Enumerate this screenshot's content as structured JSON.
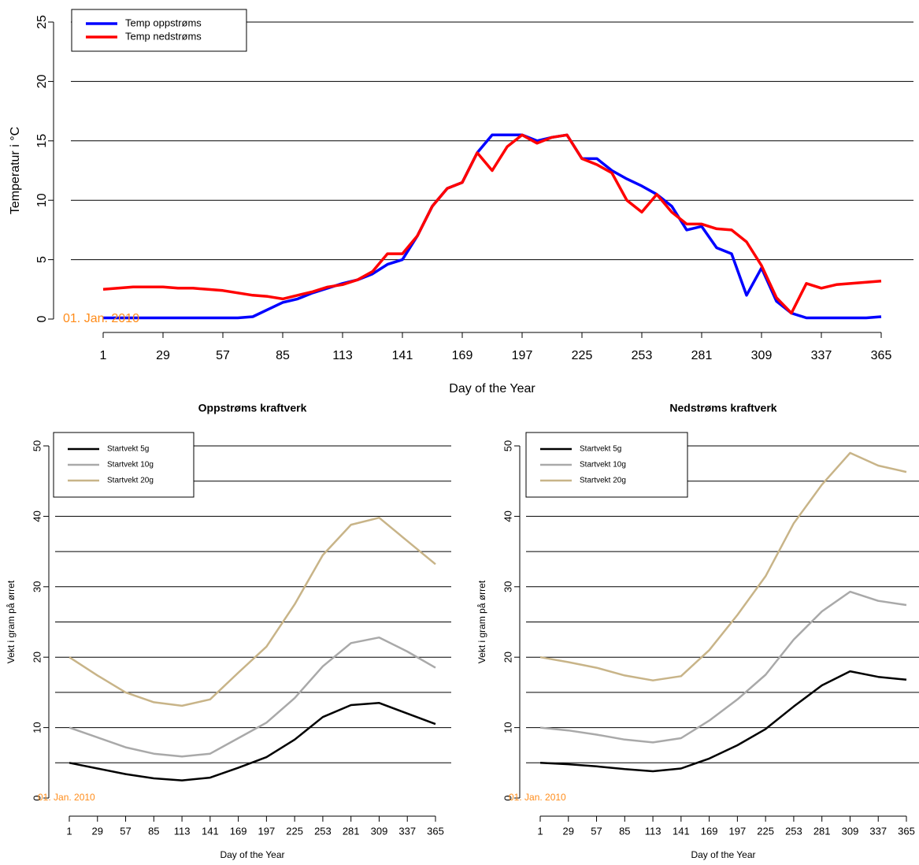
{
  "chart_data": [
    {
      "type": "line",
      "xlabel": "Day of the Year",
      "ylabel": "Temperatur i °C",
      "annotation": "01. Jan. 2010",
      "x": [
        1,
        8,
        15,
        22,
        29,
        36,
        43,
        50,
        57,
        64,
        71,
        78,
        85,
        92,
        99,
        106,
        113,
        120,
        127,
        134,
        141,
        148,
        155,
        162,
        169,
        176,
        183,
        190,
        197,
        204,
        211,
        218,
        225,
        232,
        239,
        246,
        253,
        260,
        267,
        274,
        281,
        288,
        295,
        302,
        309,
        316,
        323,
        330,
        337,
        344,
        351,
        358,
        365
      ],
      "series": [
        {
          "name": "Temp oppstrøms",
          "color": "#0000ff",
          "values": [
            0.1,
            0.1,
            0.1,
            0.1,
            0.1,
            0.1,
            0.1,
            0.1,
            0.1,
            0.1,
            0.2,
            0.8,
            1.4,
            1.7,
            2.2,
            2.6,
            3.0,
            3.3,
            3.8,
            4.6,
            5.0,
            7.0,
            9.5,
            11.0,
            11.5,
            14.0,
            15.5,
            15.5,
            15.5,
            15.0,
            15.3,
            15.5,
            13.5,
            13.5,
            12.5,
            11.8,
            11.2,
            10.5,
            9.5,
            7.5,
            7.8,
            6.0,
            5.5,
            2.0,
            4.3,
            1.5,
            0.5,
            0.1,
            0.1,
            0.1,
            0.1,
            0.1,
            0.2
          ]
        },
        {
          "name": "Temp nedstrøms",
          "color": "#ff0000",
          "values": [
            2.5,
            2.6,
            2.7,
            2.7,
            2.7,
            2.6,
            2.6,
            2.5,
            2.4,
            2.2,
            2.0,
            1.9,
            1.7,
            2.0,
            2.3,
            2.7,
            2.9,
            3.3,
            4.0,
            5.5,
            5.5,
            7.0,
            9.5,
            11.0,
            11.5,
            14.0,
            12.5,
            14.5,
            15.5,
            14.8,
            15.3,
            15.5,
            13.5,
            13.0,
            12.3,
            10.0,
            9.0,
            10.5,
            9.0,
            8.0,
            8.0,
            7.6,
            7.5,
            6.5,
            4.5,
            1.8,
            0.5,
            3.0,
            2.6,
            2.9,
            3.0,
            3.1,
            3.2
          ]
        }
      ],
      "xlim": [
        1,
        365
      ],
      "xticks": [
        1,
        29,
        57,
        85,
        113,
        141,
        169,
        197,
        225,
        253,
        281,
        309,
        337,
        365
      ],
      "ylim": [
        0,
        25
      ],
      "yticks": [
        0,
        5,
        10,
        15,
        20,
        25
      ],
      "grid_lines": [
        5,
        10,
        15,
        20,
        25
      ],
      "legend": "topleft"
    },
    {
      "type": "line",
      "title": "Oppstrøms kraftverk",
      "xlabel": "Day of the Year",
      "ylabel": "Vekt i gram på ørret",
      "annotation": "01. Jan. 2010",
      "x": [
        1,
        29,
        57,
        85,
        113,
        141,
        169,
        197,
        225,
        253,
        281,
        309,
        337,
        365
      ],
      "series": [
        {
          "name": "Startvekt 5g",
          "color": "#000000",
          "values": [
            5.0,
            4.2,
            3.4,
            2.8,
            2.5,
            2.9,
            4.3,
            5.8,
            8.3,
            11.5,
            13.2,
            13.5,
            12.0,
            10.5
          ]
        },
        {
          "name": "Startvekt 10g",
          "color": "#a9a9a9",
          "values": [
            10.0,
            8.6,
            7.2,
            6.3,
            5.9,
            6.3,
            8.5,
            10.7,
            14.2,
            18.7,
            22.0,
            22.8,
            20.8,
            18.5
          ]
        },
        {
          "name": "Startvekt 20g",
          "color": "#c8b488",
          "values": [
            20.0,
            17.4,
            15.0,
            13.6,
            13.1,
            14.0,
            17.8,
            21.5,
            27.5,
            34.5,
            38.8,
            39.8,
            36.5,
            33.2
          ]
        }
      ],
      "xlim": [
        1,
        365
      ],
      "xticks": [
        1,
        29,
        57,
        85,
        113,
        141,
        169,
        197,
        225,
        253,
        281,
        309,
        337,
        365
      ],
      "ylim": [
        0,
        50
      ],
      "yticks": [
        0,
        10,
        20,
        30,
        40,
        50
      ],
      "grid_lines": [
        5,
        10,
        15,
        20,
        25,
        30,
        35,
        40,
        45,
        50
      ],
      "legend": "topleft"
    },
    {
      "type": "line",
      "title": "Nedstrøms kraftverk",
      "xlabel": "Day of the Year",
      "ylabel": "Vekt i gram på ørret",
      "annotation": "01. Jan. 2010",
      "x": [
        1,
        29,
        57,
        85,
        113,
        141,
        169,
        197,
        225,
        253,
        281,
        309,
        337,
        365
      ],
      "series": [
        {
          "name": "Startvekt 5g",
          "color": "#000000",
          "values": [
            5.0,
            4.8,
            4.5,
            4.1,
            3.8,
            4.2,
            5.6,
            7.5,
            9.8,
            13.0,
            16.0,
            18.0,
            17.2,
            16.8
          ]
        },
        {
          "name": "Startvekt 10g",
          "color": "#a9a9a9",
          "values": [
            10.0,
            9.6,
            9.0,
            8.3,
            7.9,
            8.5,
            11.0,
            14.0,
            17.5,
            22.5,
            26.5,
            29.3,
            28.0,
            27.4
          ]
        },
        {
          "name": "Startvekt 20g",
          "color": "#c8b488",
          "values": [
            20.0,
            19.3,
            18.5,
            17.4,
            16.7,
            17.3,
            21.0,
            26.0,
            31.5,
            39.0,
            44.5,
            49.0,
            47.2,
            46.3
          ]
        }
      ],
      "xlim": [
        1,
        365
      ],
      "xticks": [
        1,
        29,
        57,
        85,
        113,
        141,
        169,
        197,
        225,
        253,
        281,
        309,
        337,
        365
      ],
      "ylim": [
        0,
        50
      ],
      "yticks": [
        0,
        10,
        20,
        30,
        40,
        50
      ],
      "grid_lines": [
        5,
        10,
        15,
        20,
        25,
        30,
        35,
        40,
        45,
        50
      ],
      "legend": "topleft"
    }
  ]
}
